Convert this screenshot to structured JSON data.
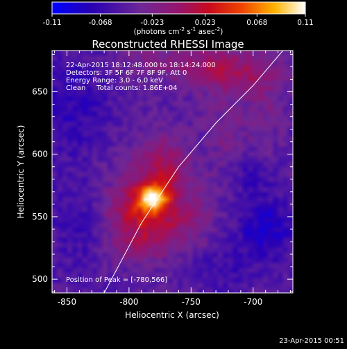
{
  "chart_data": {
    "type": "heatmap",
    "title": "Reconstructed RHESSI Image",
    "xlabel": "Heliocentric X (arcsec)",
    "ylabel": "Heliocentric Y (arcsec)",
    "xlim": [
      -862,
      -668
    ],
    "ylim": [
      489,
      683
    ],
    "x_ticks": [
      -850,
      -800,
      -750,
      -700
    ],
    "y_ticks": [
      500,
      550,
      600,
      650
    ],
    "x_tick_labels": [
      "-850",
      "-800",
      "-750",
      "-700"
    ],
    "y_tick_labels": [
      "500",
      "550",
      "600",
      "650"
    ],
    "colorbar": {
      "range": [
        -0.11,
        0.11
      ],
      "ticks": [
        -0.11,
        -0.068,
        -0.023,
        0.023,
        0.068,
        0.11
      ],
      "tick_labels": [
        "-0.11",
        "-0.068",
        "-0.023",
        "0.023",
        "0.068",
        "0.11"
      ],
      "unit_main": "(photons cm",
      "unit_exp1": "-2",
      "unit_mid1": " s",
      "unit_exp2": "-1",
      "unit_mid2": " asec",
      "unit_exp3": "-2",
      "unit_end": ")"
    },
    "annotations": [
      "22-Apr-2015 18:12:48.000 to 18:14:24.000",
      "Detectors: 3F 5F 6F 7F 8F 9F, Att 0",
      "Energy Range: 3.0 - 6.0 keV",
      "Clean     Total counts: 1.86E+04"
    ],
    "peak_label": "Position of Peak = [-780,566]",
    "peak": [
      -780,
      566
    ],
    "limb_curve": [
      [
        -820,
        489
      ],
      [
        -790,
        545
      ],
      [
        -760,
        590
      ],
      [
        -730,
        625
      ],
      [
        -700,
        655
      ],
      [
        -676,
        683
      ]
    ],
    "sources": [
      {
        "x": -781,
        "y": 565,
        "sx": 8,
        "sy": 7,
        "amp": 0.11
      },
      {
        "x": -783,
        "y": 563,
        "sx": 22,
        "sy": 22,
        "amp": 0.05
      },
      {
        "x": -772,
        "y": 593,
        "sx": 14,
        "sy": 16,
        "amp": 0.035
      },
      {
        "x": -798,
        "y": 550,
        "sx": 16,
        "sy": 14,
        "amp": 0.028
      },
      {
        "x": -765,
        "y": 540,
        "sx": 16,
        "sy": 15,
        "amp": 0.02
      },
      {
        "x": -790,
        "y": 528,
        "sx": 14,
        "sy": 12,
        "amp": 0.022
      },
      {
        "x": -815,
        "y": 520,
        "sx": 10,
        "sy": 8,
        "amp": 0.012
      },
      {
        "x": -742,
        "y": 552,
        "sx": 12,
        "sy": 16,
        "amp": 0.012
      },
      {
        "x": -735,
        "y": 672,
        "sx": 28,
        "sy": 13,
        "amp": 0.045
      },
      {
        "x": -705,
        "y": 660,
        "sx": 20,
        "sy": 12,
        "amp": 0.028
      },
      {
        "x": -790,
        "y": 676,
        "sx": 14,
        "sy": 8,
        "amp": 0.018
      },
      {
        "x": -720,
        "y": 618,
        "sx": 14,
        "sy": 18,
        "amp": 0.018
      },
      {
        "x": -688,
        "y": 630,
        "sx": 10,
        "sy": 20,
        "amp": 0.012
      },
      {
        "x": -845,
        "y": 640,
        "sx": 20,
        "sy": 30,
        "amp": -0.028
      },
      {
        "x": -690,
        "y": 540,
        "sx": 18,
        "sy": 18,
        "amp": -0.04
      },
      {
        "x": -700,
        "y": 585,
        "sx": 10,
        "sy": 10,
        "amp": -0.025
      },
      {
        "x": -728,
        "y": 506,
        "sx": 22,
        "sy": 12,
        "amp": -0.018
      },
      {
        "x": -840,
        "y": 540,
        "sx": 18,
        "sy": 30,
        "amp": -0.018
      }
    ],
    "background": -0.045,
    "grid": false
  },
  "footer": {
    "timestamp": "23-Apr-2015 00:51"
  }
}
